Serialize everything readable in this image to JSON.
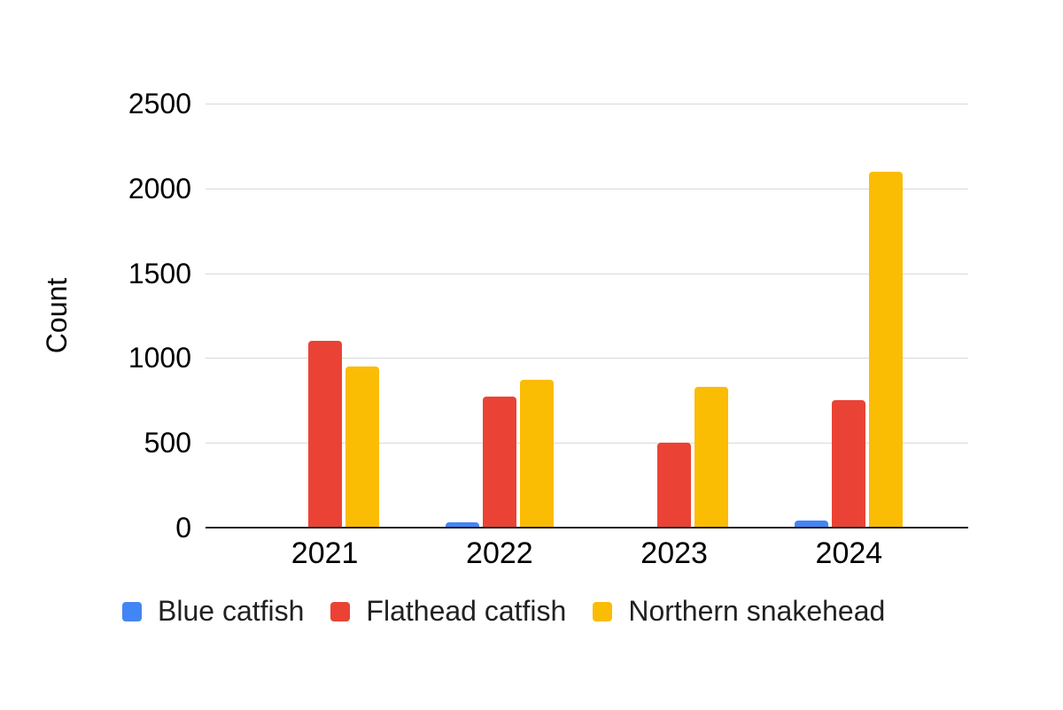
{
  "chart_data": {
    "type": "bar",
    "title": "",
    "ylabel": "Count",
    "xlabel": "",
    "ylim": [
      0,
      2500
    ],
    "yticks": [
      0,
      500,
      1000,
      1500,
      2000,
      2500
    ],
    "grid": true,
    "legend_position": "bottom",
    "categories": [
      "2021",
      "2022",
      "2023",
      "2024"
    ],
    "series": [
      {
        "name": "Blue catfish",
        "color": "#4285F4",
        "values": [
          0,
          30,
          0,
          40
        ]
      },
      {
        "name": "Flathead catfish",
        "color": "#EA4335",
        "values": [
          1100,
          770,
          500,
          750
        ]
      },
      {
        "name": "Northern snakehead",
        "color": "#FBBC04",
        "values": [
          950,
          870,
          830,
          2100
        ]
      }
    ]
  },
  "colors": {
    "background": "#ffffff",
    "gridline": "#d9d9d9",
    "axis_line": "#212121",
    "text": "#000000"
  }
}
